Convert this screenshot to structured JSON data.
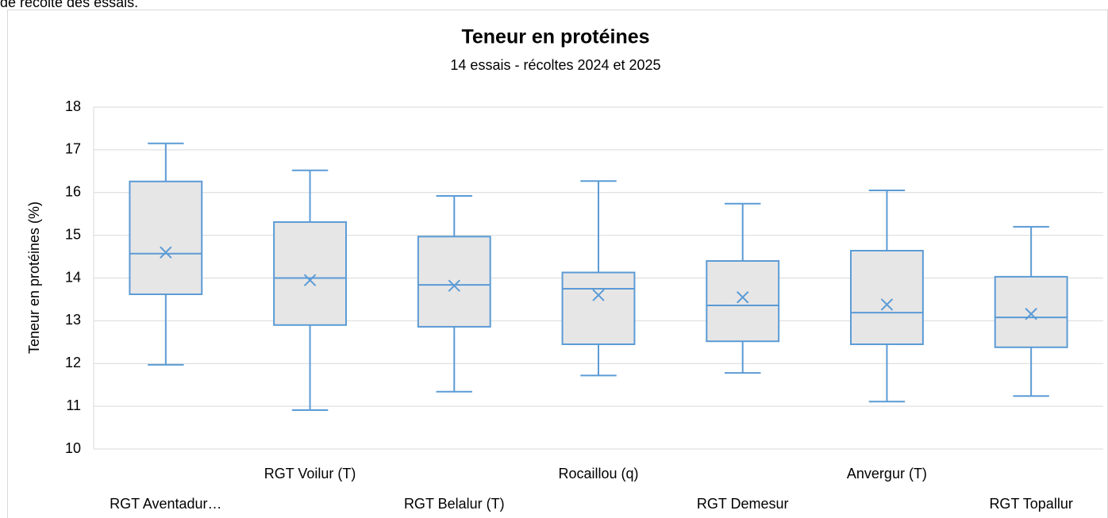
{
  "caption": "de récolte des essais.",
  "chart_data": {
    "type": "box",
    "title": "Teneur en protéines",
    "subtitle": "14 essais - récoltes 2024 et 2025",
    "y_label": "Teneur en protéines (%)",
    "categories": [
      "RGT Aventadur…",
      "RGT Voilur (T)",
      "RGT Belalur (T)",
      "Rocaillou (q)",
      "RGT Demesur",
      "Anvergur (T)",
      "RGT Topallur"
    ],
    "color": "#5b9bd5",
    "box_fill": "#e7e6e6",
    "min": [
      11.97,
      10.91,
      11.34,
      11.72,
      11.78,
      11.11,
      11.24
    ],
    "q1": [
      13.62,
      12.9,
      12.86,
      12.45,
      12.52,
      12.45,
      12.38
    ],
    "median": [
      14.57,
      14.0,
      13.84,
      13.75,
      13.36,
      13.19,
      13.08
    ],
    "q3": [
      16.26,
      15.31,
      14.97,
      14.13,
      14.4,
      14.64,
      14.03
    ],
    "max": [
      17.15,
      16.52,
      15.92,
      16.27,
      15.74,
      16.05,
      15.2
    ],
    "mean": [
      14.6,
      13.95,
      13.82,
      13.6,
      13.55,
      13.38,
      13.16
    ],
    "ylim": [
      10,
      18
    ],
    "yticks": [
      10,
      11,
      12,
      13,
      14,
      15,
      16,
      17,
      18
    ],
    "grid": true
  }
}
